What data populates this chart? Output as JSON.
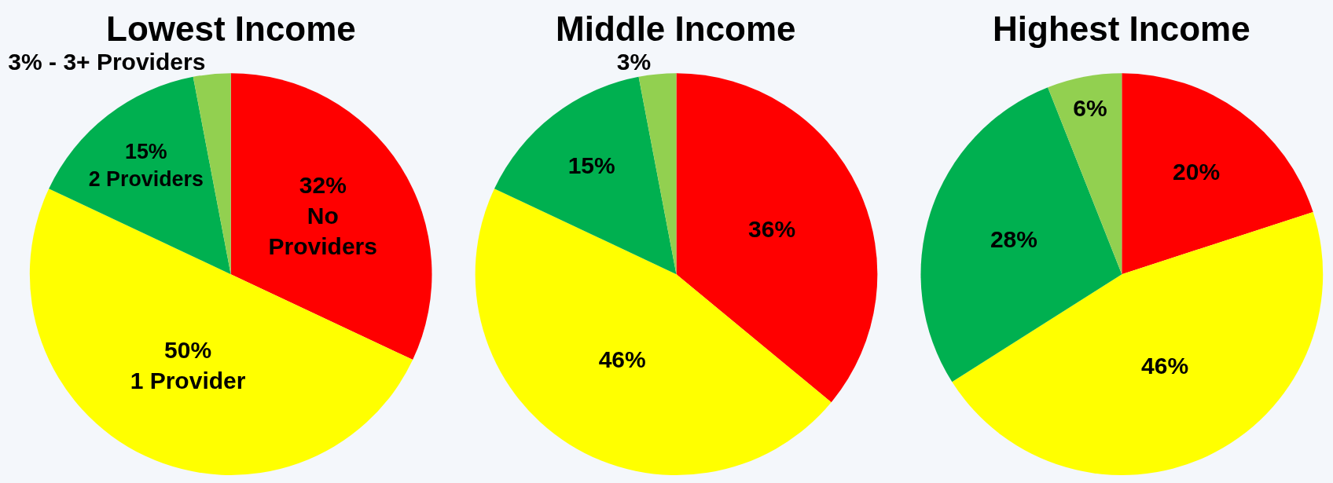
{
  "chart_data": [
    {
      "type": "pie",
      "title": "Lowest Income",
      "categories": [
        null,
        null,
        null,
        null
      ],
      "values": [
        32,
        50,
        15,
        3
      ],
      "colors": [
        "#ff0000",
        "#ffff00",
        "#00b050",
        "#92d050"
      ],
      "value_labels": [
        "32%\nNo\nProviders",
        "50%\n1 Provider",
        "15%\n2 Providers",
        "3% - 3+ Providers"
      ],
      "legend": false
    },
    {
      "type": "pie",
      "title": "Middle Income",
      "categories": [
        null,
        null,
        null,
        null
      ],
      "values": [
        36,
        46,
        15,
        3
      ],
      "colors": [
        "#ff0000",
        "#ffff00",
        "#00b050",
        "#92d050"
      ],
      "value_labels": [
        "36%",
        "46%",
        "15%",
        "3%"
      ],
      "legend": false
    },
    {
      "type": "pie",
      "title": "Highest Income",
      "categories": [
        null,
        null,
        null,
        null
      ],
      "values": [
        20,
        46,
        28,
        6
      ],
      "colors": [
        "#ff0000",
        "#ffff00",
        "#00b050",
        "#92d050"
      ],
      "value_labels": [
        "20%",
        "46%",
        "28%",
        "6%"
      ],
      "legend": false
    }
  ]
}
